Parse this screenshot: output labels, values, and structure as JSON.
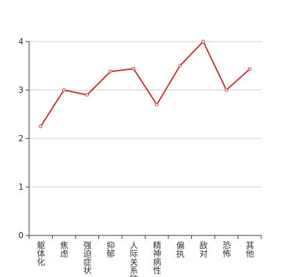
{
  "chart_data": {
    "type": "line",
    "categories": [
      "躯体化",
      "焦虑",
      "强迫症状",
      "抑郁",
      "人际关系敏感",
      "精神病性",
      "偏执",
      "敌对",
      "恐怖",
      "其他"
    ],
    "series": [
      {
        "color": "#c23531",
        "values": [
          2.25,
          3.0,
          2.9,
          3.38,
          3.44,
          2.7,
          3.5,
          4.0,
          3.0,
          3.43
        ]
      }
    ],
    "ylim": [
      0,
      4
    ],
    "yticks": [
      0,
      1,
      2,
      3,
      4
    ],
    "grid": true
  }
}
